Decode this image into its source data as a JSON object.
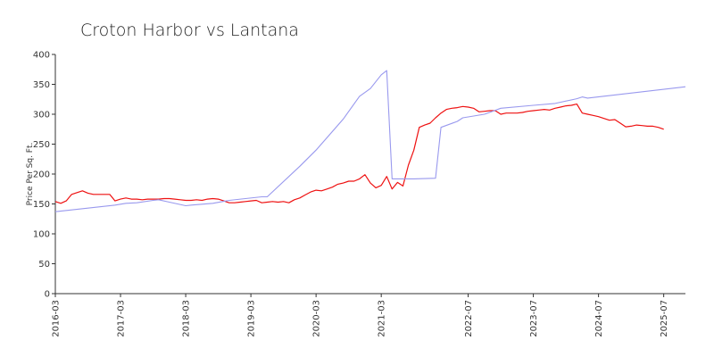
{
  "chart_data": {
    "type": "line",
    "title": "Croton Harbor vs Lantana",
    "xlabel": "",
    "ylabel": "Price Per Sq. Ft.",
    "ylim": [
      0,
      400
    ],
    "yticks": [
      0,
      50,
      100,
      150,
      200,
      250,
      300,
      350,
      400
    ],
    "xlim": [
      "2016-03",
      "2025-11"
    ],
    "xticks": [
      "2016-03",
      "2017-03",
      "2018-03",
      "2019-03",
      "2020-03",
      "2021-03",
      "2022-07",
      "2023-07",
      "2024-07",
      "2025-07"
    ],
    "grid": false,
    "legend": "none",
    "series": [
      {
        "color": "#ee1111",
        "points": [
          [
            "2016-03",
            154
          ],
          [
            "2016-04",
            151
          ],
          [
            "2016-05",
            155
          ],
          [
            "2016-06",
            166
          ],
          [
            "2016-07",
            169
          ],
          [
            "2016-08",
            172
          ],
          [
            "2016-09",
            168
          ],
          [
            "2016-10",
            166
          ],
          [
            "2016-11",
            166
          ],
          [
            "2016-12",
            166
          ],
          [
            "2017-01",
            166
          ],
          [
            "2017-02",
            155
          ],
          [
            "2017-03",
            158
          ],
          [
            "2017-04",
            160
          ],
          [
            "2017-05",
            158
          ],
          [
            "2017-06",
            158
          ],
          [
            "2017-07",
            157
          ],
          [
            "2017-08",
            158
          ],
          [
            "2017-09",
            158
          ],
          [
            "2017-10",
            158
          ],
          [
            "2017-11",
            159
          ],
          [
            "2017-12",
            159
          ],
          [
            "2018-01",
            158
          ],
          [
            "2018-02",
            157
          ],
          [
            "2018-03",
            156
          ],
          [
            "2018-04",
            156
          ],
          [
            "2018-05",
            157
          ],
          [
            "2018-06",
            156
          ],
          [
            "2018-07",
            158
          ],
          [
            "2018-08",
            159
          ],
          [
            "2018-09",
            158
          ],
          [
            "2018-10",
            155
          ],
          [
            "2018-11",
            152
          ],
          [
            "2018-12",
            152
          ],
          [
            "2019-01",
            153
          ],
          [
            "2019-02",
            154
          ],
          [
            "2019-03",
            155
          ],
          [
            "2019-04",
            156
          ],
          [
            "2019-05",
            152
          ],
          [
            "2019-06",
            153
          ],
          [
            "2019-07",
            154
          ],
          [
            "2019-08",
            153
          ],
          [
            "2019-09",
            154
          ],
          [
            "2019-10",
            152
          ],
          [
            "2019-11",
            157
          ],
          [
            "2019-12",
            160
          ],
          [
            "2020-01",
            165
          ],
          [
            "2020-02",
            170
          ],
          [
            "2020-03",
            173
          ],
          [
            "2020-04",
            172
          ],
          [
            "2020-05",
            175
          ],
          [
            "2020-06",
            178
          ],
          [
            "2020-07",
            183
          ],
          [
            "2020-08",
            185
          ],
          [
            "2020-09",
            188
          ],
          [
            "2020-10",
            188
          ],
          [
            "2020-11",
            192
          ],
          [
            "2020-12",
            199
          ],
          [
            "2021-01",
            185
          ],
          [
            "2021-02",
            177
          ],
          [
            "2021-03",
            181
          ],
          [
            "2021-04",
            196
          ],
          [
            "2021-05",
            175
          ],
          [
            "2021-06",
            186
          ],
          [
            "2021-07",
            180
          ],
          [
            "2021-08",
            215
          ],
          [
            "2021-09",
            240
          ],
          [
            "2021-10",
            278
          ],
          [
            "2021-11",
            282
          ],
          [
            "2021-12",
            285
          ],
          [
            "2022-01",
            294
          ],
          [
            "2022-02",
            302
          ],
          [
            "2022-03",
            308
          ],
          [
            "2022-04",
            310
          ],
          [
            "2022-05",
            311
          ],
          [
            "2022-06",
            313
          ],
          [
            "2022-07",
            312
          ],
          [
            "2022-08",
            310
          ],
          [
            "2022-09",
            304
          ],
          [
            "2022-10",
            305
          ],
          [
            "2022-11",
            306
          ],
          [
            "2022-12",
            306
          ],
          [
            "2023-01",
            300
          ],
          [
            "2023-02",
            302
          ],
          [
            "2023-03",
            302
          ],
          [
            "2023-04",
            302
          ],
          [
            "2023-05",
            303
          ],
          [
            "2023-06",
            305
          ],
          [
            "2023-07",
            306
          ],
          [
            "2023-08",
            307
          ],
          [
            "2023-09",
            308
          ],
          [
            "2023-10",
            307
          ],
          [
            "2023-11",
            310
          ],
          [
            "2023-12",
            312
          ],
          [
            "2024-01",
            314
          ],
          [
            "2024-02",
            315
          ],
          [
            "2024-03",
            317
          ],
          [
            "2024-04",
            302
          ],
          [
            "2024-05",
            300
          ],
          [
            "2024-06",
            298
          ],
          [
            "2024-07",
            296
          ],
          [
            "2024-08",
            293
          ],
          [
            "2024-09",
            290
          ],
          [
            "2024-10",
            291
          ],
          [
            "2024-11",
            285
          ],
          [
            "2024-12",
            279
          ],
          [
            "2025-01",
            280
          ],
          [
            "2025-02",
            282
          ],
          [
            "2025-03",
            281
          ],
          [
            "2025-04",
            280
          ],
          [
            "2025-05",
            280
          ],
          [
            "2025-06",
            278
          ],
          [
            "2025-07",
            275
          ]
        ]
      },
      {
        "color": "#9999ee",
        "points": [
          [
            "2016-03",
            137
          ],
          [
            "2017-02",
            148
          ],
          [
            "2017-04",
            151
          ],
          [
            "2017-06",
            152
          ],
          [
            "2017-09",
            156
          ],
          [
            "2017-10",
            157
          ],
          [
            "2017-12",
            153
          ],
          [
            "2018-03",
            147
          ],
          [
            "2018-04",
            148
          ],
          [
            "2018-08",
            151
          ],
          [
            "2018-11",
            156
          ],
          [
            "2019-05",
            162
          ],
          [
            "2019-06",
            162
          ],
          [
            "2019-12",
            213
          ],
          [
            "2020-03",
            240
          ],
          [
            "2020-08",
            292
          ],
          [
            "2020-11",
            330
          ],
          [
            "2021-01",
            343
          ],
          [
            "2021-03",
            366
          ],
          [
            "2021-04",
            373
          ],
          [
            "2021-05",
            192
          ],
          [
            "2021-09",
            192
          ],
          [
            "2022-01",
            193
          ],
          [
            "2022-02",
            278
          ],
          [
            "2022-05",
            288
          ],
          [
            "2022-06",
            294
          ],
          [
            "2022-10",
            300
          ],
          [
            "2023-01",
            310
          ],
          [
            "2023-07",
            315
          ],
          [
            "2023-11",
            318
          ],
          [
            "2024-03",
            326
          ],
          [
            "2024-04",
            329
          ],
          [
            "2024-05",
            327
          ],
          [
            "2025-11",
            346
          ]
        ]
      }
    ]
  }
}
